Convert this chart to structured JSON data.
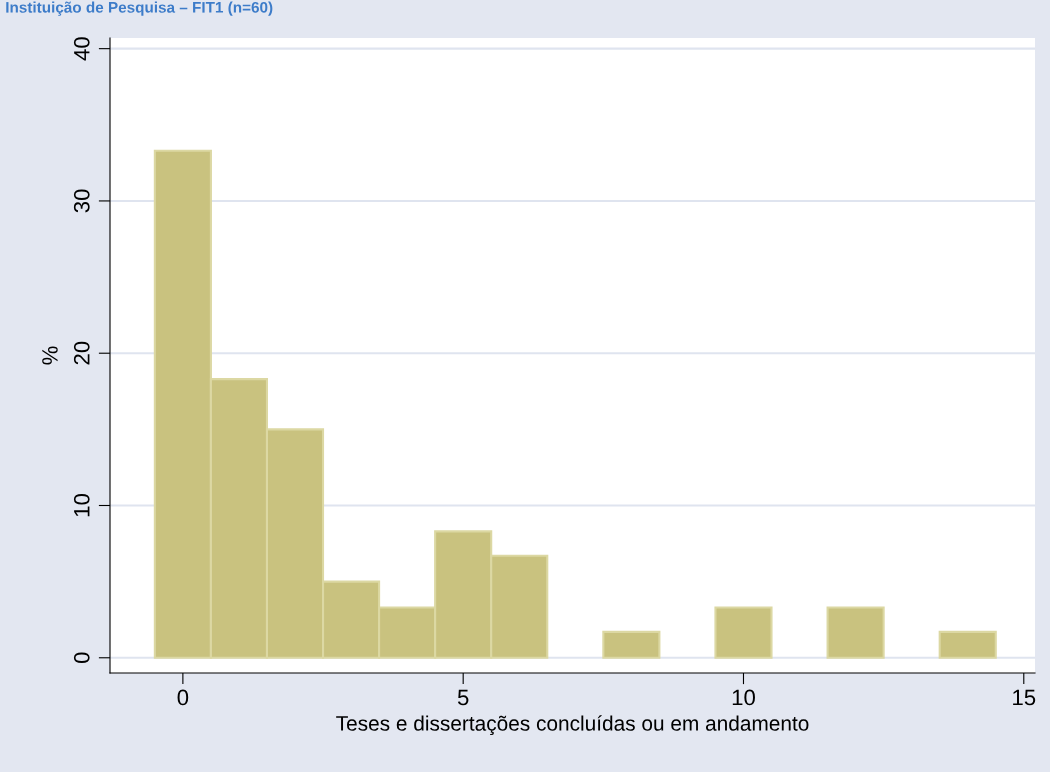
{
  "chart_data": {
    "type": "histogram",
    "title": "Instituição de Pesquisa – FIT1 (n=60)",
    "xlabel": "Teses e dissertações concluídas ou em andamento",
    "ylabel": "%",
    "bins": [
      -0.5,
      0.5,
      1.5,
      2.5,
      3.5,
      4.5,
      5.5,
      6.5,
      7.5,
      8.5,
      9.5,
      10.5,
      11.5,
      12.5,
      13.5,
      14.5
    ],
    "values": [
      33.3,
      18.3,
      15,
      5,
      3.3,
      8.3,
      6.7,
      0,
      1.7,
      0,
      3.3,
      0,
      3.3,
      0,
      1.7
    ],
    "color": "#c9c27f",
    "xlim": [
      -1.3,
      15.2
    ],
    "xticks": [
      0,
      5,
      10,
      15
    ],
    "ylim": [
      -1,
      40.7
    ],
    "yticks": [
      0,
      10,
      20,
      30,
      40
    ],
    "grid": "y"
  }
}
